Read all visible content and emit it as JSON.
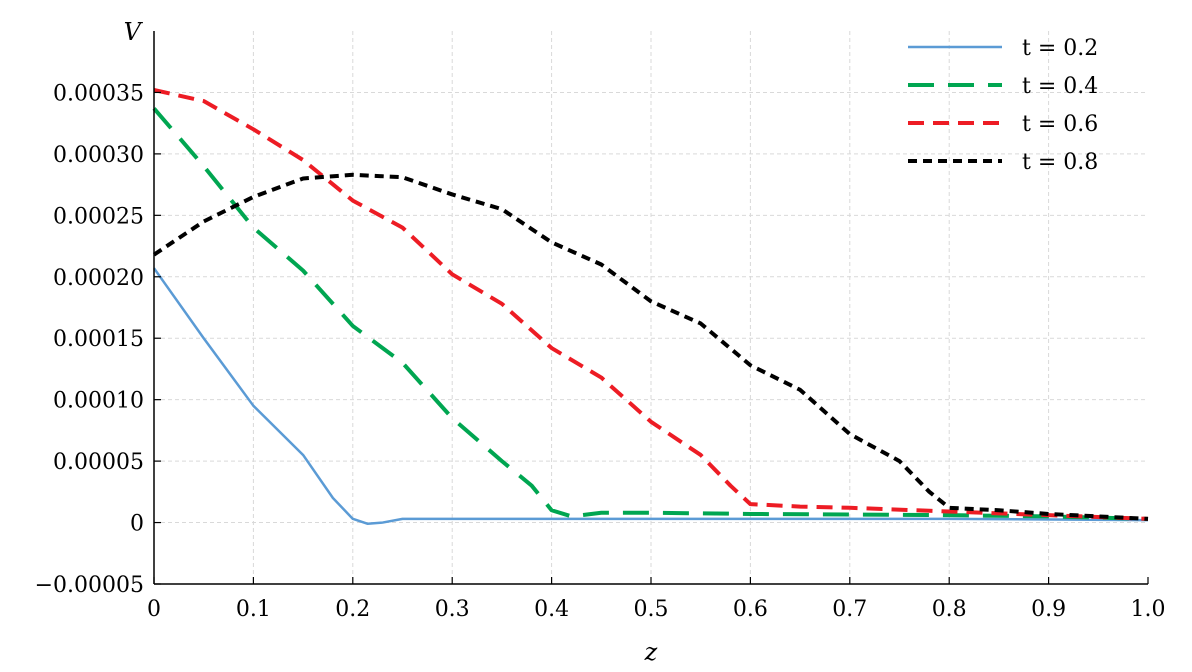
{
  "chart_data": {
    "type": "line",
    "xlabel": "z",
    "ylabel": "V",
    "xlim": [
      0,
      1.0
    ],
    "ylim": [
      -5e-05,
      0.0004
    ],
    "grid": true,
    "legend_position": "top-right",
    "x_ticks": [
      {
        "value": 0,
        "label": "0"
      },
      {
        "value": 0.1,
        "label": "0.1"
      },
      {
        "value": 0.2,
        "label": "0.2"
      },
      {
        "value": 0.3,
        "label": "0.3"
      },
      {
        "value": 0.4,
        "label": "0.4"
      },
      {
        "value": 0.5,
        "label": "0.5"
      },
      {
        "value": 0.6,
        "label": "0.6"
      },
      {
        "value": 0.7,
        "label": "0.7"
      },
      {
        "value": 0.8,
        "label": "0.8"
      },
      {
        "value": 0.9,
        "label": "0.9"
      },
      {
        "value": 1.0,
        "label": "1.0"
      }
    ],
    "y_ticks": [
      {
        "value": -5e-05,
        "label": "−0.00005"
      },
      {
        "value": 0,
        "label": "0"
      },
      {
        "value": 5e-05,
        "label": "0.00005"
      },
      {
        "value": 0.0001,
        "label": "0.00010"
      },
      {
        "value": 0.00015,
        "label": "0.00015"
      },
      {
        "value": 0.0002,
        "label": "0.00020"
      },
      {
        "value": 0.00025,
        "label": "0.00025"
      },
      {
        "value": 0.0003,
        "label": "0.00030"
      },
      {
        "value": 0.00035,
        "label": "0.00035"
      }
    ],
    "series": [
      {
        "name": "t = 0.2",
        "color": "#5b9bd5",
        "dash": "solid",
        "points": [
          [
            0,
            0.000207
          ],
          [
            0.05,
            0.00015
          ],
          [
            0.1,
            9.5e-05
          ],
          [
            0.15,
            5.5e-05
          ],
          [
            0.18,
            2e-05
          ],
          [
            0.2,
            3e-06
          ],
          [
            0.215,
            -1e-06
          ],
          [
            0.23,
            0.0
          ],
          [
            0.25,
            3e-06
          ],
          [
            0.3,
            3e-06
          ],
          [
            0.5,
            3e-06
          ],
          [
            0.8,
            3e-06
          ],
          [
            1.0,
            2e-06
          ]
        ]
      },
      {
        "name": "t = 0.4",
        "color": "#00a651",
        "dash": "long",
        "points": [
          [
            0,
            0.000337
          ],
          [
            0.05,
            0.00029
          ],
          [
            0.1,
            0.00024
          ],
          [
            0.15,
            0.000205
          ],
          [
            0.2,
            0.00016
          ],
          [
            0.25,
            0.00013
          ],
          [
            0.3,
            8.5e-05
          ],
          [
            0.35,
            5e-05
          ],
          [
            0.38,
            3e-05
          ],
          [
            0.4,
            1e-05
          ],
          [
            0.42,
            5e-06
          ],
          [
            0.45,
            8e-06
          ],
          [
            0.5,
            8e-06
          ],
          [
            0.6,
            7e-06
          ],
          [
            0.8,
            6e-06
          ],
          [
            0.9,
            5e-06
          ],
          [
            1.0,
            3e-06
          ]
        ]
      },
      {
        "name": "t = 0.6",
        "color": "#ed1c24",
        "dash": "medium",
        "points": [
          [
            0,
            0.000352
          ],
          [
            0.05,
            0.000343
          ],
          [
            0.1,
            0.00032
          ],
          [
            0.15,
            0.000295
          ],
          [
            0.2,
            0.000262
          ],
          [
            0.25,
            0.00024
          ],
          [
            0.3,
            0.000202
          ],
          [
            0.35,
            0.000178
          ],
          [
            0.4,
            0.000142
          ],
          [
            0.45,
            0.000118
          ],
          [
            0.5,
            8.2e-05
          ],
          [
            0.55,
            5.5e-05
          ],
          [
            0.58,
            3e-05
          ],
          [
            0.6,
            1.5e-05
          ],
          [
            0.65,
            1.3e-05
          ],
          [
            0.7,
            1.2e-05
          ],
          [
            0.8,
            9e-06
          ],
          [
            0.9,
            6e-06
          ],
          [
            1.0,
            3e-06
          ]
        ]
      },
      {
        "name": "t = 0.8",
        "color": "#000000",
        "dash": "short",
        "points": [
          [
            0,
            0.000218
          ],
          [
            0.05,
            0.000245
          ],
          [
            0.1,
            0.000265
          ],
          [
            0.15,
            0.00028
          ],
          [
            0.2,
            0.000283
          ],
          [
            0.25,
            0.000281
          ],
          [
            0.3,
            0.000267
          ],
          [
            0.35,
            0.000255
          ],
          [
            0.4,
            0.000228
          ],
          [
            0.45,
            0.00021
          ],
          [
            0.5,
            0.00018
          ],
          [
            0.55,
            0.000162
          ],
          [
            0.6,
            0.000128
          ],
          [
            0.65,
            0.000108
          ],
          [
            0.7,
            7.2e-05
          ],
          [
            0.75,
            5e-05
          ],
          [
            0.78,
            2.5e-05
          ],
          [
            0.8,
            1.2e-05
          ],
          [
            0.85,
            1e-05
          ],
          [
            0.9,
            7e-06
          ],
          [
            1.0,
            3e-06
          ]
        ]
      }
    ]
  }
}
